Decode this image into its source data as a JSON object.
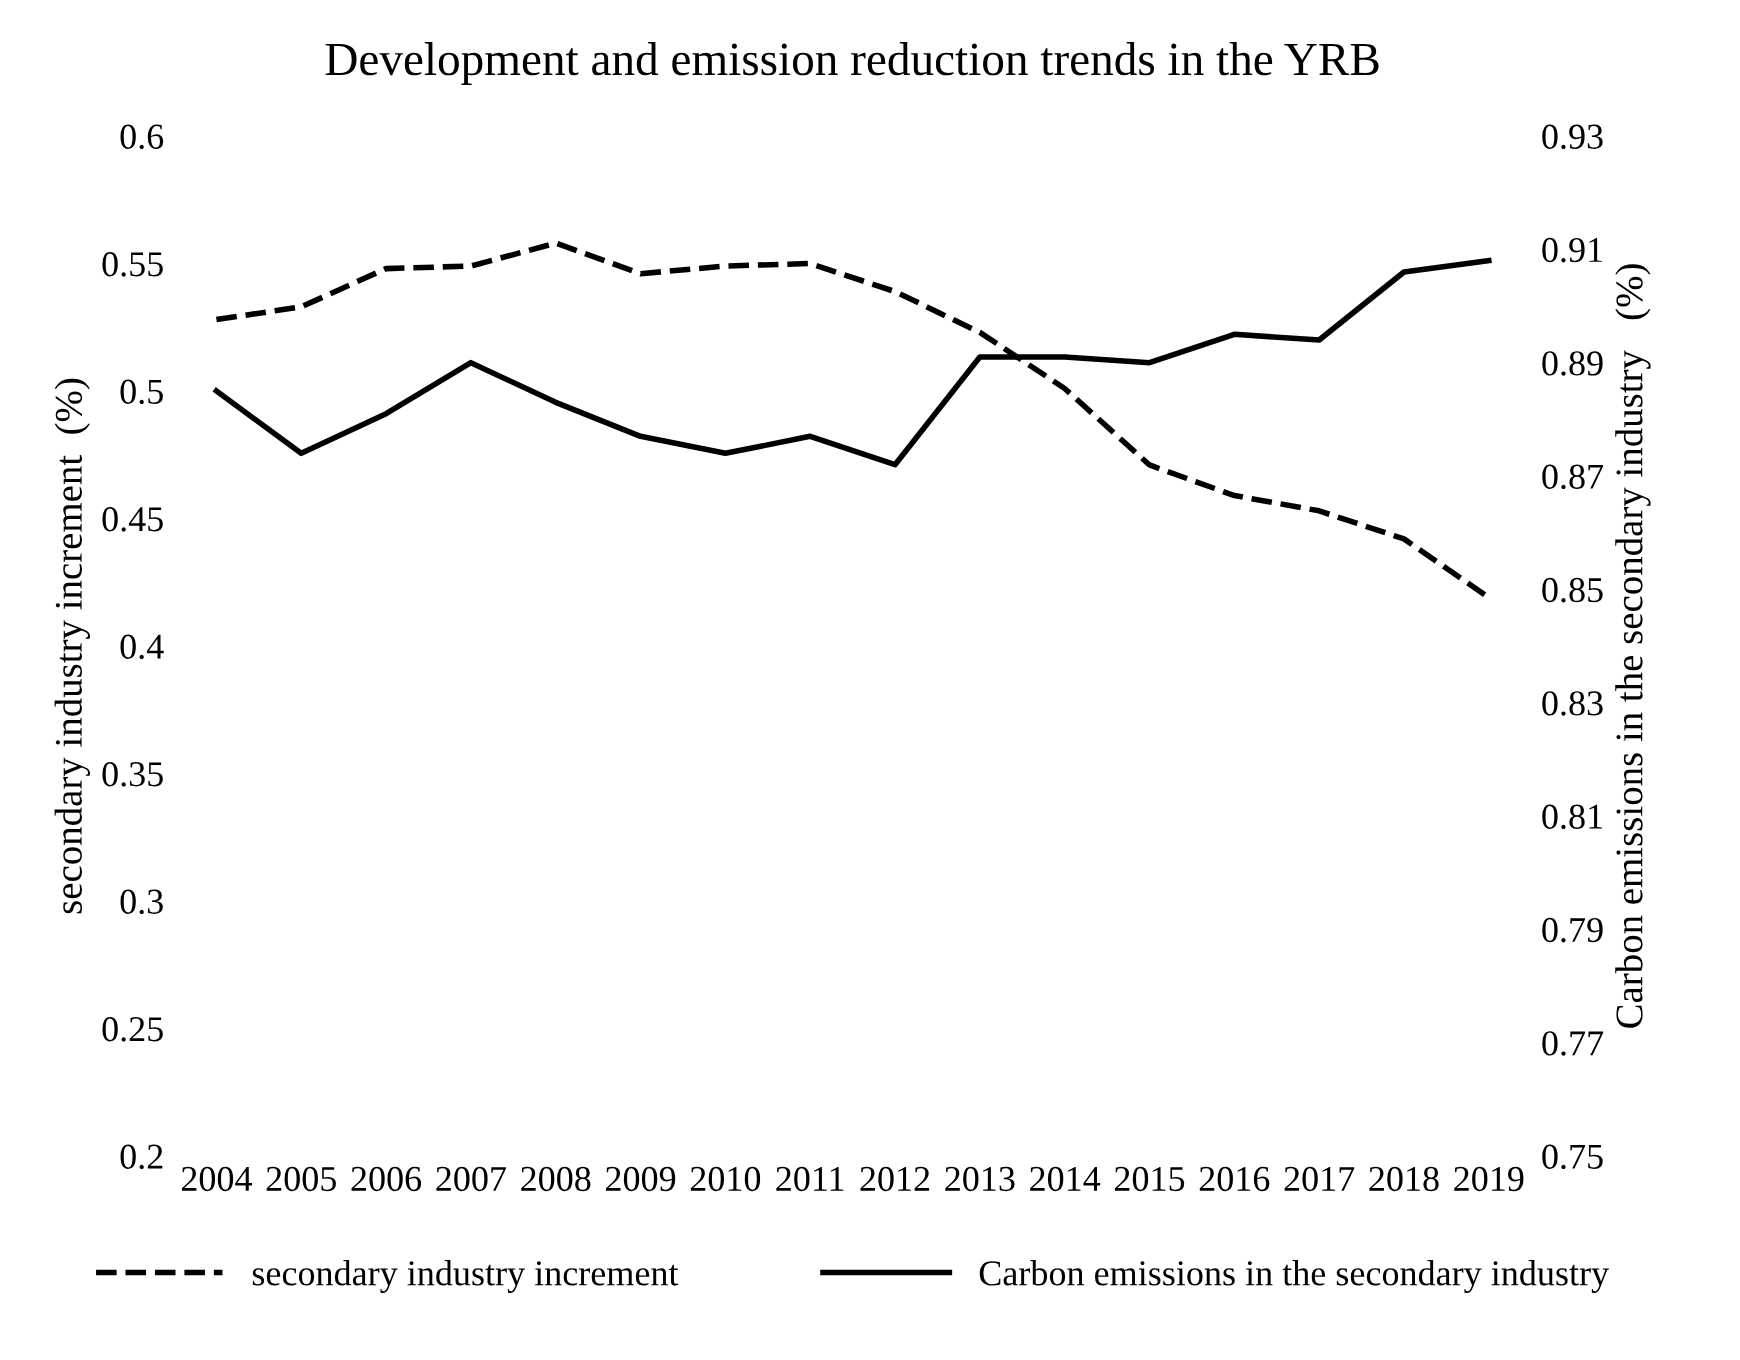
{
  "chart_data": {
    "type": "line",
    "title": "Development and emission reduction trends in the YRB",
    "categories": [
      "2004",
      "2005",
      "2006",
      "2007",
      "2008",
      "2009",
      "2010",
      "2011",
      "2012",
      "2013",
      "2014",
      "2015",
      "2016",
      "2017",
      "2018",
      "2019"
    ],
    "ylabel": "secondary industry increment  (%)",
    "y2label": "Carbon emissions in the secondary industry   (%)",
    "series": [
      {
        "name": "secondary industry increment",
        "color": "#000000",
        "line_style": "dashed",
        "values": [
          0.528,
          0.533,
          0.548,
          0.549,
          0.558,
          0.546,
          0.549,
          0.55,
          0.539,
          0.523,
          0.501,
          0.471,
          0.459,
          0.453,
          0.442,
          0.419
        ]
      },
      {
        "name": "Carbon emissions in the secondary industry",
        "color": "#000000",
        "line_style": "solid",
        "axis": "y2",
        "values": [
          0.885,
          0.874,
          0.881,
          0.89,
          0.883,
          0.877,
          0.874,
          0.877,
          0.872,
          0.891,
          0.891,
          0.89,
          0.895,
          0.894,
          0.906,
          0.908
        ]
      }
    ],
    "ylim": [
      0.2,
      0.6
    ],
    "yticks": [
      0.2,
      0.25,
      0.3,
      0.35,
      0.4,
      0.45,
      0.5,
      0.55,
      0.6
    ],
    "y2lim": [
      0.75,
      0.93
    ],
    "y2ticks": [
      0.75,
      0.77,
      0.79,
      0.81,
      0.83,
      0.85,
      0.87,
      0.89,
      0.91,
      0.93
    ],
    "grid": false,
    "legend": "bottom",
    "marker": "none"
  }
}
